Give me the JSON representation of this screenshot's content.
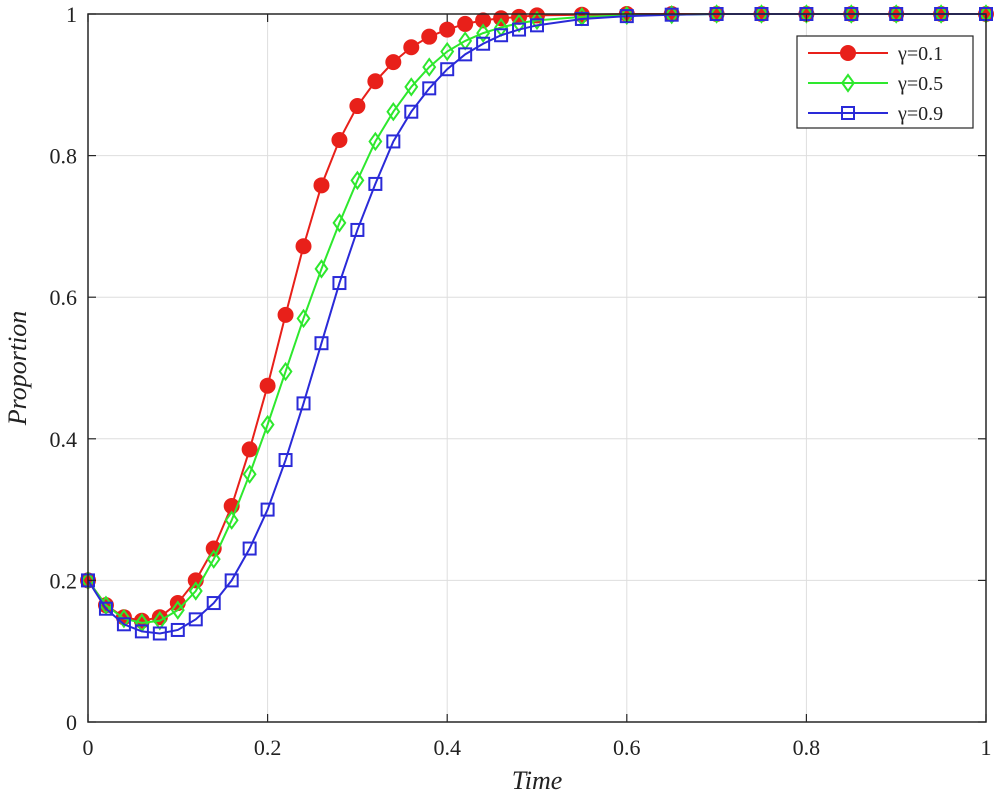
{
  "chart_data": {
    "type": "line",
    "xlabel": "Time",
    "ylabel": "Proportion",
    "xlim": [
      0,
      1
    ],
    "ylim": [
      0,
      1
    ],
    "xticks": [
      "0",
      "0.2",
      "0.4",
      "0.6",
      "0.8",
      "1"
    ],
    "yticks": [
      "0",
      "0.2",
      "0.4",
      "0.6",
      "0.8",
      "1"
    ],
    "grid": true,
    "legend_position": "top-right",
    "series": [
      {
        "name": "γ=0.1",
        "color": "#e8201a",
        "marker": "circle-filled",
        "x": [
          0.0,
          0.02,
          0.04,
          0.06,
          0.08,
          0.1,
          0.12,
          0.14,
          0.16,
          0.18,
          0.2,
          0.22,
          0.24,
          0.26,
          0.28,
          0.3,
          0.32,
          0.34,
          0.36,
          0.38,
          0.4,
          0.42,
          0.44,
          0.46,
          0.48,
          0.5,
          0.55,
          0.6,
          0.65,
          0.7,
          0.75,
          0.8,
          0.85,
          0.9,
          0.95,
          1.0
        ],
        "y": [
          0.2,
          0.165,
          0.148,
          0.143,
          0.148,
          0.168,
          0.2,
          0.245,
          0.305,
          0.385,
          0.475,
          0.575,
          0.672,
          0.758,
          0.822,
          0.87,
          0.905,
          0.932,
          0.953,
          0.968,
          0.978,
          0.986,
          0.991,
          0.994,
          0.996,
          0.998,
          0.999,
          1.0,
          1.0,
          1.0,
          1.0,
          1.0,
          1.0,
          1.0,
          1.0,
          1.0
        ]
      },
      {
        "name": "γ=0.5",
        "color": "#2ee82e",
        "marker": "diamond-open",
        "x": [
          0.0,
          0.02,
          0.04,
          0.06,
          0.08,
          0.1,
          0.12,
          0.14,
          0.16,
          0.18,
          0.2,
          0.22,
          0.24,
          0.26,
          0.28,
          0.3,
          0.32,
          0.34,
          0.36,
          0.38,
          0.4,
          0.42,
          0.44,
          0.46,
          0.48,
          0.5,
          0.55,
          0.6,
          0.65,
          0.7,
          0.75,
          0.8,
          0.85,
          0.9,
          0.95,
          1.0
        ],
        "y": [
          0.2,
          0.165,
          0.146,
          0.14,
          0.143,
          0.158,
          0.185,
          0.23,
          0.285,
          0.35,
          0.42,
          0.495,
          0.57,
          0.64,
          0.705,
          0.765,
          0.82,
          0.862,
          0.897,
          0.925,
          0.947,
          0.962,
          0.973,
          0.981,
          0.987,
          0.991,
          0.996,
          0.998,
          0.999,
          1.0,
          1.0,
          1.0,
          1.0,
          1.0,
          1.0,
          1.0
        ]
      },
      {
        "name": "γ=0.9",
        "color": "#2a2ad8",
        "marker": "square-open",
        "x": [
          0.0,
          0.02,
          0.04,
          0.06,
          0.08,
          0.1,
          0.12,
          0.14,
          0.16,
          0.18,
          0.2,
          0.22,
          0.24,
          0.26,
          0.28,
          0.3,
          0.32,
          0.34,
          0.36,
          0.38,
          0.4,
          0.42,
          0.44,
          0.46,
          0.48,
          0.5,
          0.55,
          0.6,
          0.65,
          0.7,
          0.75,
          0.8,
          0.85,
          0.9,
          0.95,
          1.0
        ],
        "y": [
          0.2,
          0.16,
          0.138,
          0.128,
          0.125,
          0.13,
          0.145,
          0.168,
          0.2,
          0.245,
          0.3,
          0.37,
          0.45,
          0.535,
          0.62,
          0.695,
          0.76,
          0.82,
          0.862,
          0.895,
          0.922,
          0.943,
          0.958,
          0.97,
          0.978,
          0.984,
          0.993,
          0.997,
          0.999,
          1.0,
          1.0,
          1.0,
          1.0,
          1.0,
          1.0,
          1.0
        ]
      }
    ]
  }
}
